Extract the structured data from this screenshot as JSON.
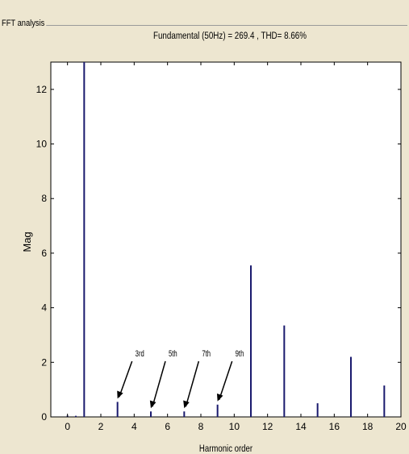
{
  "panel": {
    "group_title": "FFT analysis"
  },
  "colors": {
    "panel_background": "#ede6d0",
    "plot_background": "#ffffff",
    "bar_color": "#1a1a6e",
    "axis_color": "#000000"
  },
  "chart_data": {
    "type": "bar",
    "title": "Fundamental (50Hz) = 269.4 , THD= 8.66%",
    "xlabel": "Harmonic order",
    "ylabel": "Mag",
    "xlim": [
      -1,
      20
    ],
    "ylim": [
      0,
      13
    ],
    "xticks": [
      "0",
      "2",
      "4",
      "6",
      "8",
      "10",
      "12",
      "14",
      "16",
      "18",
      "20"
    ],
    "yticks": [
      "0",
      "2",
      "4",
      "6",
      "8",
      "10",
      "12"
    ],
    "x": [
      0,
      0.5,
      1,
      3,
      5,
      7,
      9,
      11,
      13,
      15,
      17,
      19
    ],
    "values": [
      0.05,
      0.04,
      13.0,
      0.55,
      0.2,
      0.2,
      0.45,
      5.55,
      3.35,
      0.5,
      2.2,
      1.15
    ],
    "grid": false,
    "annotations": [
      {
        "text": "3rd",
        "x": 3,
        "y": 0.55
      },
      {
        "text": "5th",
        "x": 5,
        "y": 0.2
      },
      {
        "text": "7th",
        "x": 7,
        "y": 0.2
      },
      {
        "text": "9th",
        "x": 9,
        "y": 0.45
      }
    ]
  }
}
